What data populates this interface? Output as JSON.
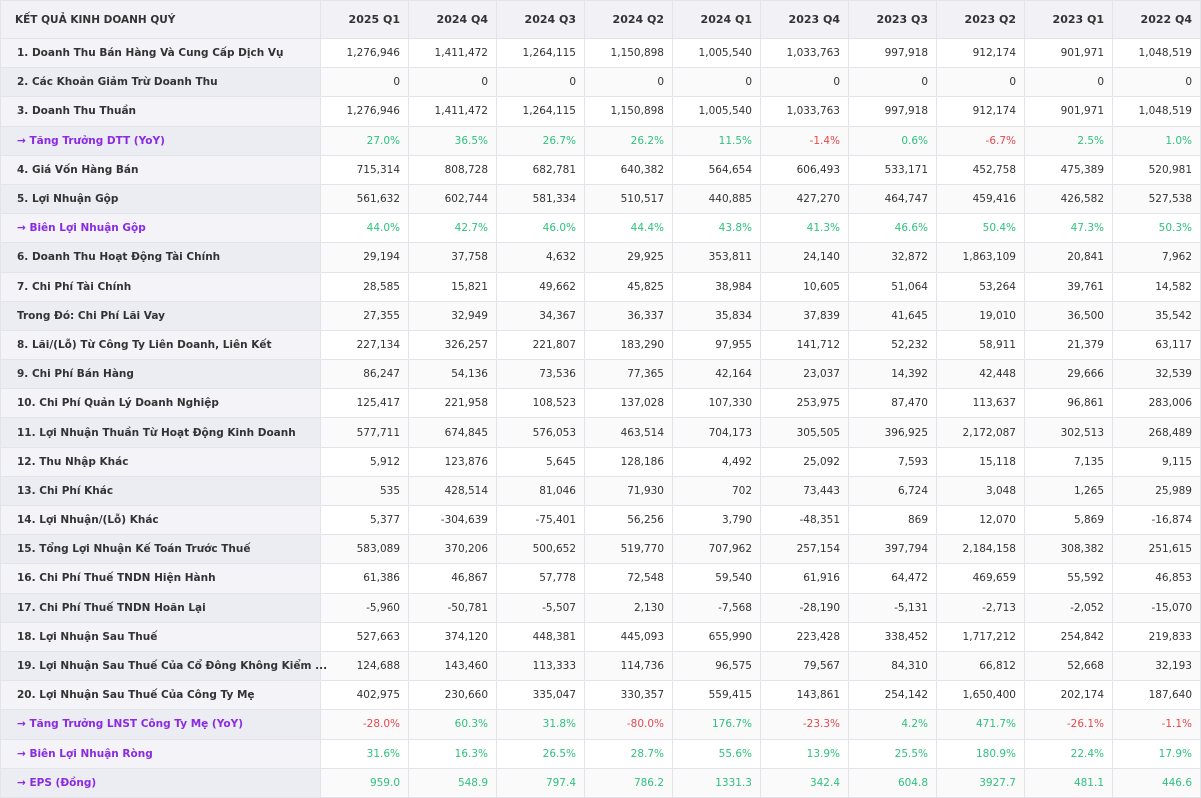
{
  "table": {
    "title": "KẾT QUẢ KINH DOANH QUÝ",
    "columns": [
      "2025 Q1",
      "2024 Q4",
      "2024 Q3",
      "2024 Q2",
      "2024 Q1",
      "2023 Q4",
      "2023 Q3",
      "2023 Q2",
      "2023 Q1",
      "2022 Q4"
    ],
    "colors": {
      "positive": "#2ec27e",
      "negative": "#e5484d",
      "metric_label": "#8a2be2"
    },
    "rows": [
      {
        "label": "1. Doanh Thu Bán Hàng Và Cung Cấp Dịch Vụ",
        "values": [
          "1,276,946",
          "1,411,472",
          "1,264,115",
          "1,150,898",
          "1,005,540",
          "1,033,763",
          "997,918",
          "912,174",
          "901,971",
          "1,048,519"
        ]
      },
      {
        "label": "2. Các Khoản Giảm Trừ Doanh Thu",
        "values": [
          "0",
          "0",
          "0",
          "0",
          "0",
          "0",
          "0",
          "0",
          "0",
          "0"
        ]
      },
      {
        "label": "3. Doanh Thu Thuần",
        "values": [
          "1,276,946",
          "1,411,472",
          "1,264,115",
          "1,150,898",
          "1,005,540",
          "1,033,763",
          "997,918",
          "912,174",
          "901,971",
          "1,048,519"
        ]
      },
      {
        "label": "→ Tăng Trưởng DTT (YoY)",
        "metric": true,
        "values": [
          "27.0%",
          "36.5%",
          "26.7%",
          "26.2%",
          "11.5%",
          "-1.4%",
          "0.6%",
          "-6.7%",
          "2.5%",
          "1.0%"
        ]
      },
      {
        "label": "4. Giá Vốn Hàng Bán",
        "values": [
          "715,314",
          "808,728",
          "682,781",
          "640,382",
          "564,654",
          "606,493",
          "533,171",
          "452,758",
          "475,389",
          "520,981"
        ]
      },
      {
        "label": "5. Lợi Nhuận Gộp",
        "values": [
          "561,632",
          "602,744",
          "581,334",
          "510,517",
          "440,885",
          "427,270",
          "464,747",
          "459,416",
          "426,582",
          "527,538"
        ]
      },
      {
        "label": "→ Biên Lợi Nhuận Gộp",
        "metric": true,
        "values": [
          "44.0%",
          "42.7%",
          "46.0%",
          "44.4%",
          "43.8%",
          "41.3%",
          "46.6%",
          "50.4%",
          "47.3%",
          "50.3%"
        ]
      },
      {
        "label": "6. Doanh Thu Hoạt Động Tài Chính",
        "values": [
          "29,194",
          "37,758",
          "4,632",
          "29,925",
          "353,811",
          "24,140",
          "32,872",
          "1,863,109",
          "20,841",
          "7,962"
        ]
      },
      {
        "label": "7. Chi Phí Tài Chính",
        "values": [
          "28,585",
          "15,821",
          "49,662",
          "45,825",
          "38,984",
          "10,605",
          "51,064",
          "53,264",
          "39,761",
          "14,582"
        ]
      },
      {
        "label": "Trong Đó: Chi Phí Lãi Vay",
        "values": [
          "27,355",
          "32,949",
          "34,367",
          "36,337",
          "35,834",
          "37,839",
          "41,645",
          "19,010",
          "36,500",
          "35,542"
        ]
      },
      {
        "label": "8. Lãi/(Lỗ) Từ Công Ty Liên Doanh, Liên Kết",
        "values": [
          "227,134",
          "326,257",
          "221,807",
          "183,290",
          "97,955",
          "141,712",
          "52,232",
          "58,911",
          "21,379",
          "63,117"
        ]
      },
      {
        "label": "9. Chi Phí Bán Hàng",
        "values": [
          "86,247",
          "54,136",
          "73,536",
          "77,365",
          "42,164",
          "23,037",
          "14,392",
          "42,448",
          "29,666",
          "32,539"
        ]
      },
      {
        "label": "10. Chi Phí Quản Lý Doanh Nghiệp",
        "values": [
          "125,417",
          "221,958",
          "108,523",
          "137,028",
          "107,330",
          "253,975",
          "87,470",
          "113,637",
          "96,861",
          "283,006"
        ]
      },
      {
        "label": "11. Lợi Nhuận Thuần Từ Hoạt Động Kinh Doanh",
        "values": [
          "577,711",
          "674,845",
          "576,053",
          "463,514",
          "704,173",
          "305,505",
          "396,925",
          "2,172,087",
          "302,513",
          "268,489"
        ]
      },
      {
        "label": "12. Thu Nhập Khác",
        "values": [
          "5,912",
          "123,876",
          "5,645",
          "128,186",
          "4,492",
          "25,092",
          "7,593",
          "15,118",
          "7,135",
          "9,115"
        ]
      },
      {
        "label": "13. Chi Phí Khác",
        "values": [
          "535",
          "428,514",
          "81,046",
          "71,930",
          "702",
          "73,443",
          "6,724",
          "3,048",
          "1,265",
          "25,989"
        ]
      },
      {
        "label": "14. Lợi Nhuận/(Lỗ) Khác",
        "values": [
          "5,377",
          "-304,639",
          "-75,401",
          "56,256",
          "3,790",
          "-48,351",
          "869",
          "12,070",
          "5,869",
          "-16,874"
        ]
      },
      {
        "label": "15. Tổng Lợi Nhuận Kế Toán Trước Thuế",
        "values": [
          "583,089",
          "370,206",
          "500,652",
          "519,770",
          "707,962",
          "257,154",
          "397,794",
          "2,184,158",
          "308,382",
          "251,615"
        ]
      },
      {
        "label": "16. Chi Phí Thuế TNDN Hiện Hành",
        "values": [
          "61,386",
          "46,867",
          "57,778",
          "72,548",
          "59,540",
          "61,916",
          "64,472",
          "469,659",
          "55,592",
          "46,853"
        ]
      },
      {
        "label": "17. Chi Phí Thuế TNDN Hoãn Lại",
        "values": [
          "-5,960",
          "-50,781",
          "-5,507",
          "2,130",
          "-7,568",
          "-28,190",
          "-5,131",
          "-2,713",
          "-2,052",
          "-15,070"
        ]
      },
      {
        "label": "18. Lợi Nhuận Sau Thuế",
        "values": [
          "527,663",
          "374,120",
          "448,381",
          "445,093",
          "655,990",
          "223,428",
          "338,452",
          "1,717,212",
          "254,842",
          "219,833"
        ]
      },
      {
        "label": "19. Lợi Nhuận Sau Thuế Của Cổ Đông Không Kiểm ...",
        "values": [
          "124,688",
          "143,460",
          "113,333",
          "114,736",
          "96,575",
          "79,567",
          "84,310",
          "66,812",
          "52,668",
          "32,193"
        ]
      },
      {
        "label": "20. Lợi Nhuận Sau Thuế Của Công Ty Mẹ",
        "values": [
          "402,975",
          "230,660",
          "335,047",
          "330,357",
          "559,415",
          "143,861",
          "254,142",
          "1,650,400",
          "202,174",
          "187,640"
        ]
      },
      {
        "label": "→ Tăng Trưởng LNST Công Ty Mẹ (YoY)",
        "metric": true,
        "values": [
          "-28.0%",
          "60.3%",
          "31.8%",
          "-80.0%",
          "176.7%",
          "-23.3%",
          "4.2%",
          "471.7%",
          "-26.1%",
          "-1.1%"
        ]
      },
      {
        "label": "→ Biên Lợi Nhuận Ròng",
        "metric": true,
        "values": [
          "31.6%",
          "16.3%",
          "26.5%",
          "28.7%",
          "55.6%",
          "13.9%",
          "25.5%",
          "180.9%",
          "22.4%",
          "17.9%"
        ]
      },
      {
        "label": "→ EPS (Đồng)",
        "metric": true,
        "values": [
          "959.0",
          "548.9",
          "797.4",
          "786.2",
          "1331.3",
          "342.4",
          "604.8",
          "3927.7",
          "481.1",
          "446.6"
        ]
      }
    ]
  }
}
